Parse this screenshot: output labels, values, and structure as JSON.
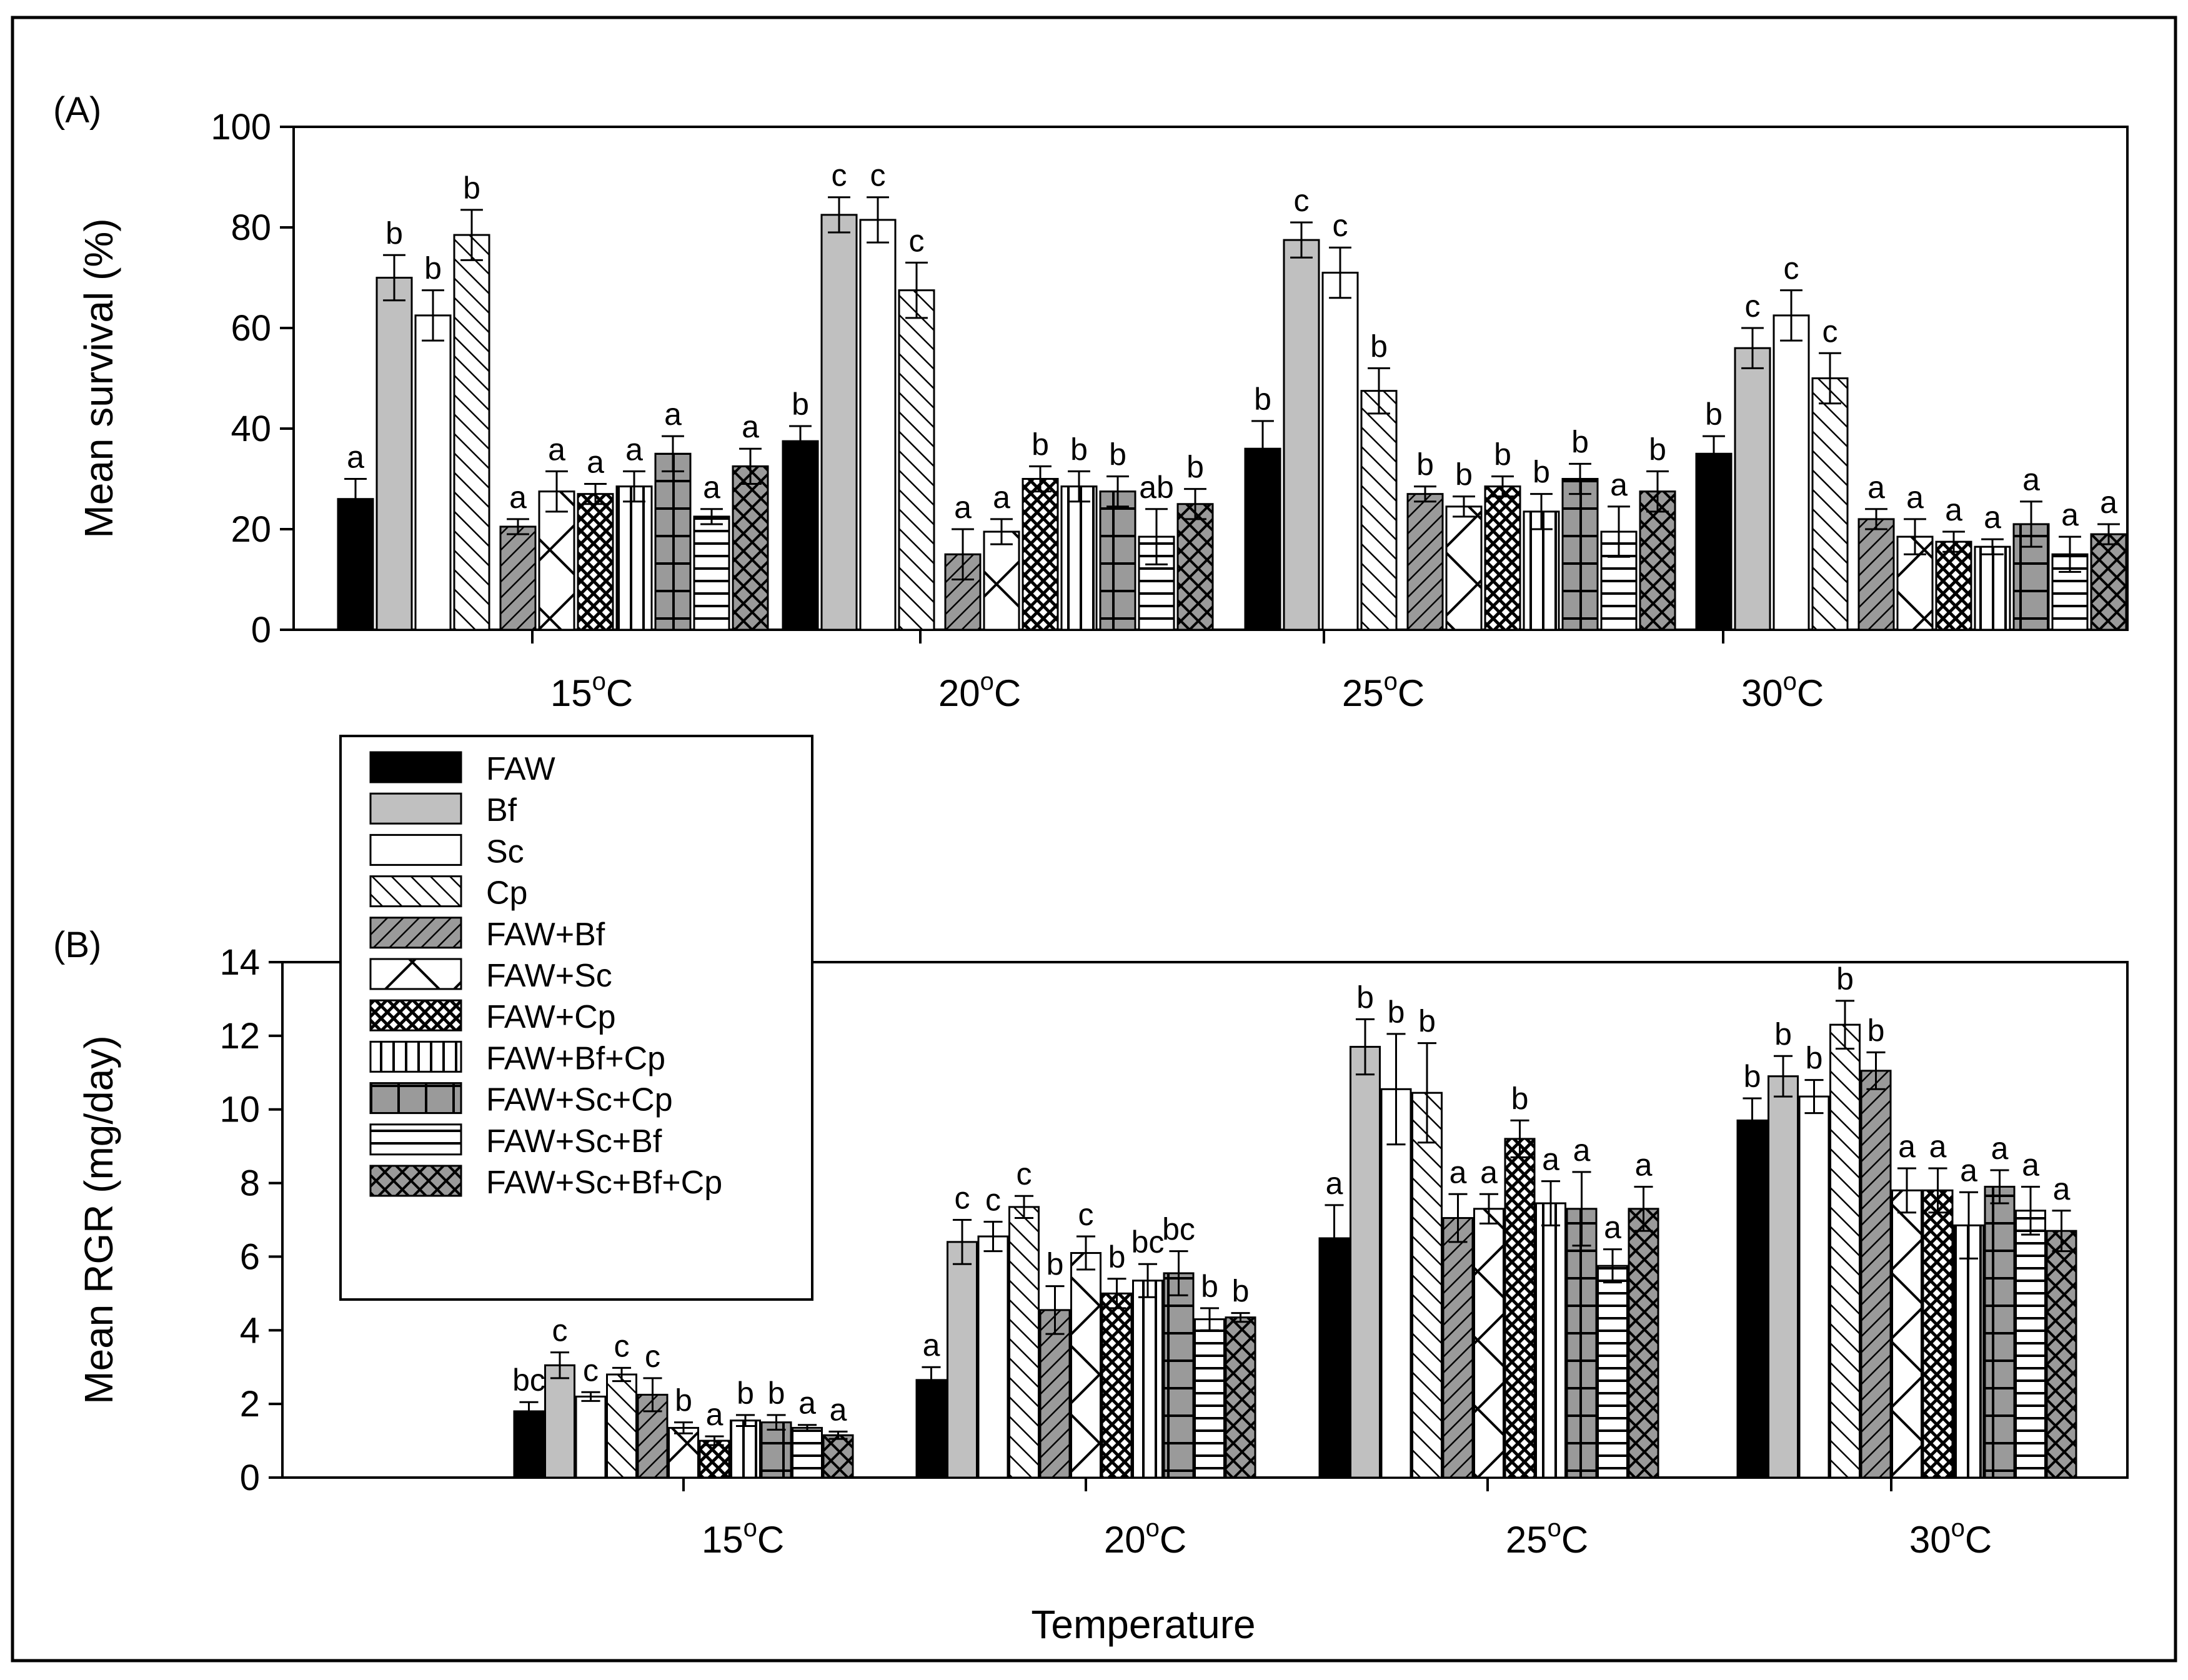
{
  "chart_data": [
    {
      "type": "bar",
      "panel": "(A)",
      "ylabel": "Mean survival (%)",
      "xlabel": "",
      "ylim": [
        0,
        100
      ],
      "yticks": [
        0,
        20,
        40,
        60,
        80,
        100
      ],
      "categories": [
        "15oC",
        "20oC",
        "25oC",
        "30oC"
      ],
      "category_labels": [
        {
          "base": "15",
          "sup": "o",
          "unit": "C"
        },
        {
          "base": "20",
          "sup": "o",
          "unit": "C"
        },
        {
          "base": "25",
          "sup": "o",
          "unit": "C"
        },
        {
          "base": "30",
          "sup": "o",
          "unit": "C"
        }
      ],
      "series": [
        {
          "name": "FAW",
          "values": [
            26,
            37.5,
            36,
            35
          ],
          "errors": [
            4,
            3,
            5.5,
            3.5
          ],
          "letters": [
            "a",
            "b",
            "b",
            "b"
          ]
        },
        {
          "name": "Bf",
          "values": [
            70,
            82.5,
            77.5,
            56
          ],
          "errors": [
            4.5,
            3.5,
            3.5,
            4
          ],
          "letters": [
            "b",
            "c",
            "c",
            "c"
          ]
        },
        {
          "name": "Sc",
          "values": [
            62.5,
            81.5,
            71,
            62.5
          ],
          "errors": [
            5,
            4.5,
            5,
            5
          ],
          "letters": [
            "b",
            "c",
            "c",
            "c"
          ]
        },
        {
          "name": "Cp",
          "values": [
            78.5,
            67.5,
            47.5,
            50
          ],
          "errors": [
            5,
            5.5,
            4.5,
            5
          ],
          "letters": [
            "b",
            "c",
            "b",
            "c"
          ]
        },
        {
          "name": "FAW+Bf",
          "values": [
            20.5,
            15,
            27,
            22
          ],
          "errors": [
            1.5,
            5,
            1.5,
            2
          ],
          "letters": [
            "a",
            "a",
            "b",
            "a"
          ]
        },
        {
          "name": "FAW+Sc",
          "values": [
            27.5,
            19.5,
            24.5,
            18.5
          ],
          "errors": [
            4,
            2.5,
            2,
            3.5
          ],
          "letters": [
            "a",
            "a",
            "b",
            "a"
          ]
        },
        {
          "name": "FAW+Cp",
          "values": [
            27,
            30,
            28.5,
            17.5
          ],
          "errors": [
            2,
            2.5,
            2,
            2
          ],
          "letters": [
            "a",
            "b",
            "b",
            "a"
          ]
        },
        {
          "name": "FAW+Bf+Cp",
          "values": [
            28.5,
            28.5,
            23.5,
            16.5
          ],
          "errors": [
            3,
            3,
            3.5,
            1.5
          ],
          "letters": [
            "a",
            "b",
            "b",
            "a"
          ]
        },
        {
          "name": "FAW+Sc+Cp",
          "values": [
            35,
            27.5,
            30,
            21
          ],
          "errors": [
            3.5,
            3,
            3,
            4.5
          ],
          "letters": [
            "a",
            "b",
            "b",
            "a"
          ]
        },
        {
          "name": "FAW+Sc+Bf",
          "values": [
            22.5,
            18.5,
            19.5,
            15
          ],
          "errors": [
            1.5,
            5.5,
            5,
            3.5
          ],
          "letters": [
            "a",
            "ab",
            "a",
            "a"
          ]
        },
        {
          "name": "FAW+Sc+Bf+Cp",
          "values": [
            32.5,
            25,
            27.5,
            19
          ],
          "errors": [
            3.5,
            3,
            4,
            2
          ],
          "letters": [
            "a",
            "b",
            "b",
            "a"
          ]
        }
      ]
    },
    {
      "type": "bar",
      "panel": "(B)",
      "ylabel": "Mean RGR (mg/day)",
      "xlabel": "Temperature",
      "ylim": [
        0,
        14
      ],
      "yticks": [
        0,
        2,
        4,
        6,
        8,
        10,
        12,
        14
      ],
      "categories": [
        "15oC",
        "20oC",
        "25oC",
        "30oC"
      ],
      "category_labels": [
        {
          "base": "15",
          "sup": "o",
          "unit": "C"
        },
        {
          "base": "20",
          "sup": "o",
          "unit": "C"
        },
        {
          "base": "25",
          "sup": "o",
          "unit": "C"
        },
        {
          "base": "30",
          "sup": "o",
          "unit": "C"
        }
      ],
      "series": [
        {
          "name": "FAW",
          "values": [
            1.8,
            2.65,
            6.5,
            9.7
          ],
          "errors": [
            0.25,
            0.35,
            0.9,
            0.6
          ],
          "letters": [
            "bc",
            "a",
            "a",
            "b"
          ]
        },
        {
          "name": "Bf",
          "values": [
            3.05,
            6.4,
            11.7,
            10.9
          ],
          "errors": [
            0.35,
            0.6,
            0.75,
            0.55
          ],
          "letters": [
            "c",
            "c",
            "b",
            "b"
          ]
        },
        {
          "name": "Sc",
          "values": [
            2.2,
            6.55,
            10.55,
            10.35
          ],
          "errors": [
            0.12,
            0.4,
            1.5,
            0.45
          ],
          "letters": [
            "c",
            "c",
            "b",
            "b"
          ]
        },
        {
          "name": "Cp",
          "values": [
            2.8,
            7.35,
            10.45,
            12.3
          ],
          "errors": [
            0.18,
            0.3,
            1.35,
            0.65
          ],
          "letters": [
            "c",
            "c",
            "b",
            "b"
          ]
        },
        {
          "name": "FAW+Bf",
          "values": [
            2.25,
            4.55,
            7.05,
            11.05
          ],
          "errors": [
            0.45,
            0.65,
            0.65,
            0.5
          ],
          "letters": [
            "c",
            "b",
            "a",
            "b"
          ]
        },
        {
          "name": "FAW+Sc",
          "values": [
            1.35,
            6.1,
            7.3,
            7.8
          ],
          "errors": [
            0.15,
            0.45,
            0.4,
            0.6
          ],
          "letters": [
            "b",
            "c",
            "a",
            "a"
          ]
        },
        {
          "name": "FAW+Cp",
          "values": [
            1.0,
            5.0,
            9.2,
            7.8
          ],
          "errors": [
            0.12,
            0.4,
            0.5,
            0.6
          ],
          "letters": [
            "a",
            "b",
            "b",
            "a"
          ]
        },
        {
          "name": "FAW+Bf+Cp",
          "values": [
            1.55,
            5.35,
            7.45,
            6.85
          ],
          "errors": [
            0.15,
            0.45,
            0.6,
            0.9
          ],
          "letters": [
            "b",
            "bc",
            "a",
            "a"
          ]
        },
        {
          "name": "FAW+Sc+Cp",
          "values": [
            1.5,
            5.55,
            7.3,
            7.9
          ],
          "errors": [
            0.2,
            0.6,
            1.0,
            0.45
          ],
          "letters": [
            "b",
            "bc",
            "a",
            "a"
          ]
        },
        {
          "name": "FAW+Sc+Bf",
          "values": [
            1.35,
            4.3,
            5.75,
            7.25
          ],
          "errors": [
            0.08,
            0.3,
            0.45,
            0.65
          ],
          "letters": [
            "a",
            "b",
            "a",
            "a"
          ]
        },
        {
          "name": "FAW+Sc+Bf+Cp",
          "values": [
            1.15,
            4.35,
            7.3,
            6.7
          ],
          "errors": [
            0.1,
            0.12,
            0.6,
            0.55
          ],
          "letters": [
            "a",
            "b",
            "a",
            "a"
          ]
        }
      ]
    }
  ],
  "legend": {
    "placement": "upper-left of panel B",
    "entries": [
      "FAW",
      "Bf",
      "Sc",
      "Cp",
      "FAW+Bf",
      "FAW+Sc",
      "FAW+Cp",
      "FAW+Bf+Cp",
      "FAW+Sc+Cp",
      "FAW+Sc+Bf",
      "FAW+Sc+Bf+Cp"
    ]
  },
  "colors": {
    "FAW": "#000000",
    "Bf": "#c0c0c0",
    "Sc": "#ffffff",
    "hatch_gray": "#9a9a9a",
    "stroke": "#000000"
  }
}
